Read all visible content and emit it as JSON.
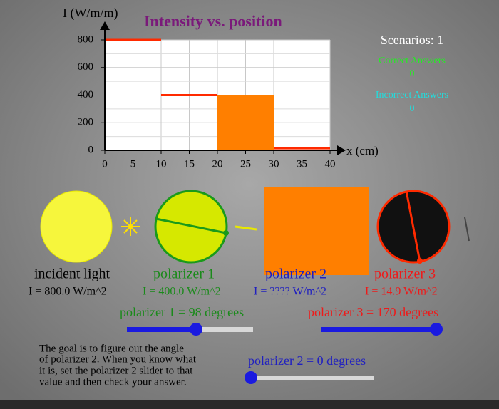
{
  "chart_data": {
    "type": "step",
    "title": "Intensity vs. position",
    "y_label": "I (W/m/m)",
    "x_label": "x (cm)",
    "x_start": [
      0,
      10,
      20,
      30
    ],
    "x_end": [
      10,
      20,
      30,
      40
    ],
    "values": [
      800,
      400,
      400,
      14.9
    ],
    "colors": [
      "#ff2a00",
      "#ff2a00",
      "#ff7f00",
      "#ff2a00"
    ],
    "styles": [
      "line",
      "line",
      "bar",
      "line"
    ],
    "xlim": [
      0,
      40
    ],
    "ylim": [
      0,
      800
    ],
    "xticks": [
      0,
      5,
      10,
      15,
      20,
      25,
      30,
      35,
      40
    ],
    "yticks": [
      0,
      200,
      400,
      600,
      800
    ],
    "grid": true
  },
  "scoreboard": {
    "scenarios": "Scenarios: 1",
    "correct_label": "Correct Answers",
    "correct": "0",
    "incorrect_label": "Incorrect Answers",
    "incorrect": "0"
  },
  "stages": [
    {
      "name": "incident light",
      "intensity": "I = 800.0 W/m^2"
    },
    {
      "name": "polarizer 1",
      "intensity": "I = 400.0 W/m^2"
    },
    {
      "name": "polarizer 2",
      "intensity": "I = ???? W/m^2"
    },
    {
      "name": "polarizer 3",
      "intensity": "I = 14.9 W/m^2"
    }
  ],
  "sliders": {
    "polarizer1": "polarizer 1 = 98 degrees",
    "polarizer3": "polarizer 3 = 170 degrees",
    "polarizer2": "polarizer 2 = 0 degrees"
  },
  "instructions": [
    "The goal is to figure out the angle",
    "of polarizer 2. When you know what",
    "it is, set the polarizer 2 slider to that",
    "value and then check your answer."
  ]
}
